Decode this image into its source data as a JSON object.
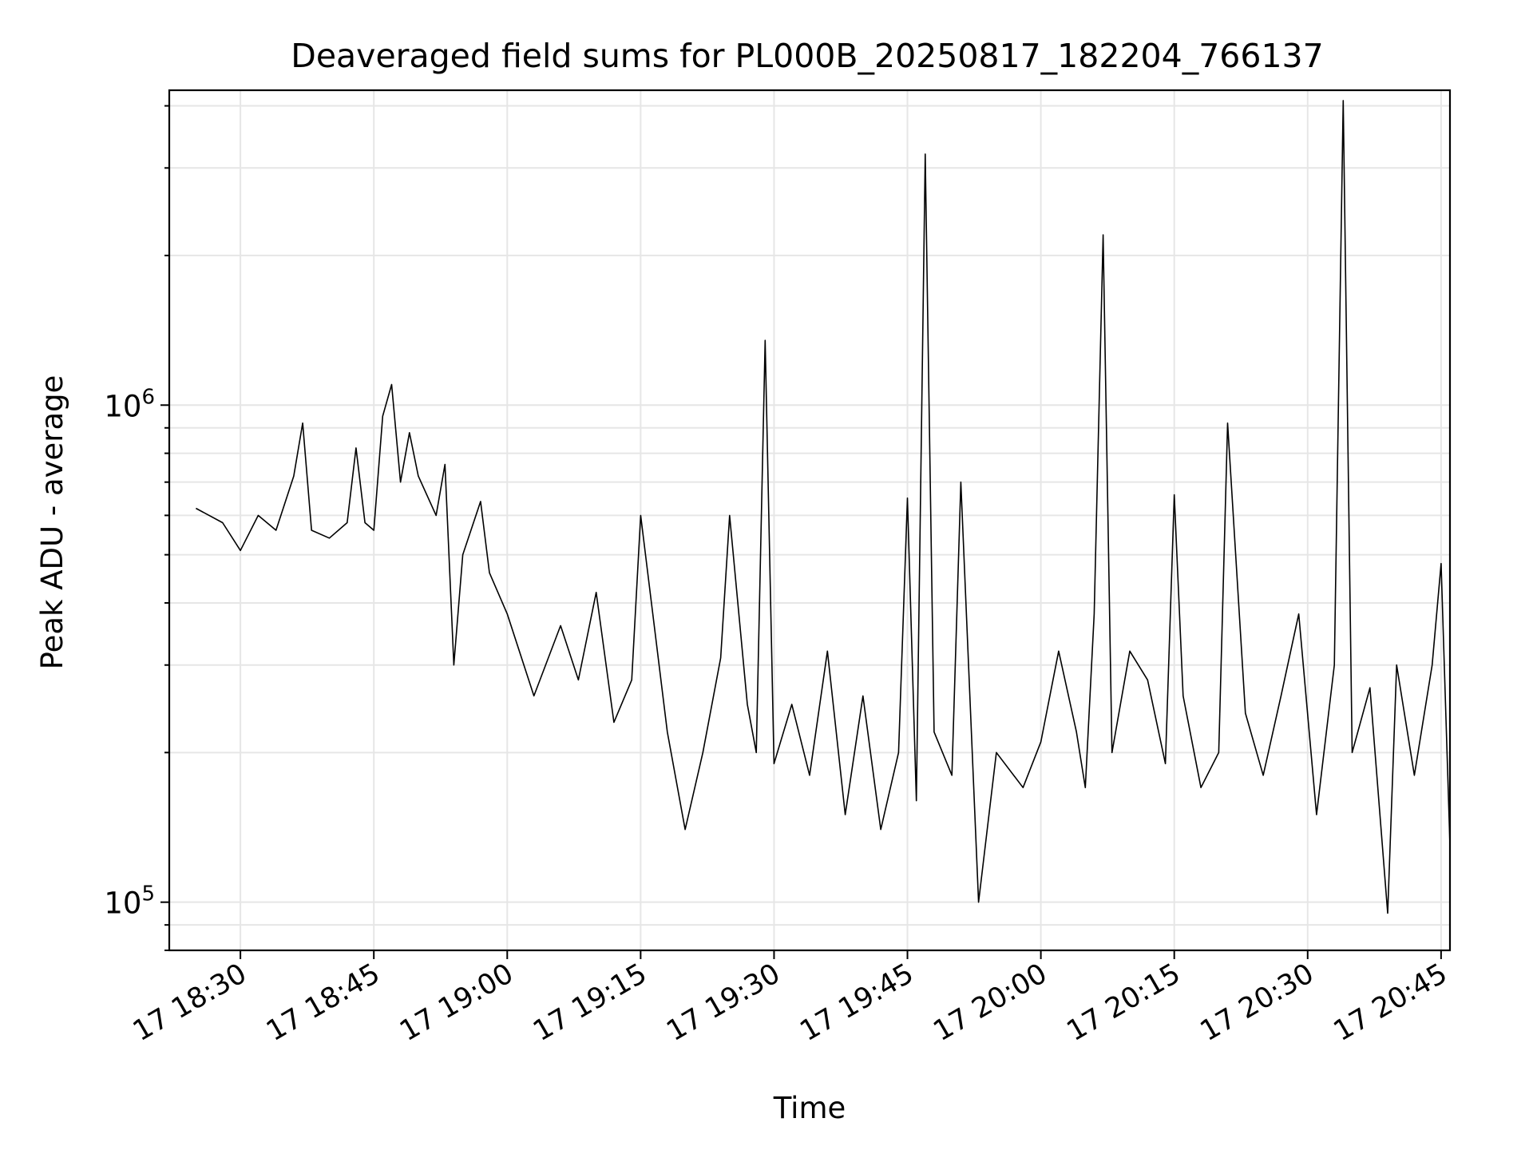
{
  "chart_data": {
    "type": "line",
    "title": "Deaveraged field sums for PL000B_20250817_182204_766137",
    "xlabel": "Time",
    "ylabel": "Peak ADU - average",
    "x_start": "2025-08-17 18:22",
    "x_end": "2025-08-17 20:46",
    "xlim": [
      "2025-08-17 18:22",
      "2025-08-17 20:46"
    ],
    "ylim": [
      80000,
      4300000
    ],
    "yscale": "log",
    "grid": true,
    "line_color": "#000000",
    "grid_color": "#e6e6e6",
    "x_ticks": [
      {
        "label": "17 18:30",
        "time": "18:30"
      },
      {
        "label": "17 18:45",
        "time": "18:45"
      },
      {
        "label": "17 19:00",
        "time": "19:00"
      },
      {
        "label": "17 19:15",
        "time": "19:15"
      },
      {
        "label": "17 19:30",
        "time": "19:30"
      },
      {
        "label": "17 19:45",
        "time": "19:45"
      },
      {
        "label": "17 20:00",
        "time": "20:00"
      },
      {
        "label": "17 20:15",
        "time": "20:15"
      },
      {
        "label": "17 20:30",
        "time": "20:30"
      },
      {
        "label": "17 20:45",
        "time": "20:45"
      }
    ],
    "y_ticks": [
      {
        "base": "10",
        "exp": "5",
        "value": 100000
      },
      {
        "base": "10",
        "exp": "6",
        "value": 1000000
      }
    ],
    "series": [
      {
        "points": [
          [
            "18:25",
            620000
          ],
          [
            "18:28",
            580000
          ],
          [
            "18:30",
            510000
          ],
          [
            "18:32",
            600000
          ],
          [
            "18:34",
            560000
          ],
          [
            "18:36",
            720000
          ],
          [
            "18:37",
            920000
          ],
          [
            "18:38",
            560000
          ],
          [
            "18:40",
            540000
          ],
          [
            "18:42",
            580000
          ],
          [
            "18:43",
            820000
          ],
          [
            "18:44",
            580000
          ],
          [
            "18:45",
            560000
          ],
          [
            "18:46",
            950000
          ],
          [
            "18:47",
            1100000
          ],
          [
            "18:48",
            700000
          ],
          [
            "18:49",
            880000
          ],
          [
            "18:50",
            720000
          ],
          [
            "18:52",
            600000
          ],
          [
            "18:53",
            760000
          ],
          [
            "18:54",
            300000
          ],
          [
            "18:55",
            500000
          ],
          [
            "18:57",
            640000
          ],
          [
            "18:58",
            460000
          ],
          [
            "19:00",
            380000
          ],
          [
            "19:03",
            260000
          ],
          [
            "19:06",
            360000
          ],
          [
            "19:08",
            280000
          ],
          [
            "19:10",
            420000
          ],
          [
            "19:12",
            230000
          ],
          [
            "19:14",
            280000
          ],
          [
            "19:15",
            600000
          ],
          [
            "19:18",
            220000
          ],
          [
            "19:20",
            140000
          ],
          [
            "19:22",
            200000
          ],
          [
            "19:24",
            310000
          ],
          [
            "19:25",
            600000
          ],
          [
            "19:27",
            250000
          ],
          [
            "19:28",
            200000
          ],
          [
            "19:29",
            1350000
          ],
          [
            "19:30",
            190000
          ],
          [
            "19:32",
            250000
          ],
          [
            "19:34",
            180000
          ],
          [
            "19:36",
            320000
          ],
          [
            "19:38",
            150000
          ],
          [
            "19:40",
            260000
          ],
          [
            "19:42",
            140000
          ],
          [
            "19:44",
            200000
          ],
          [
            "19:45",
            650000
          ],
          [
            "19:46",
            160000
          ],
          [
            "19:47",
            3200000
          ],
          [
            "19:48",
            220000
          ],
          [
            "19:50",
            180000
          ],
          [
            "19:51",
            700000
          ],
          [
            "19:53",
            100000
          ],
          [
            "19:55",
            200000
          ],
          [
            "19:58",
            170000
          ],
          [
            "20:00",
            210000
          ],
          [
            "20:02",
            320000
          ],
          [
            "20:04",
            220000
          ],
          [
            "20:05",
            170000
          ],
          [
            "20:06",
            380000
          ],
          [
            "20:07",
            2200000
          ],
          [
            "20:08",
            200000
          ],
          [
            "20:10",
            320000
          ],
          [
            "20:12",
            280000
          ],
          [
            "20:14",
            190000
          ],
          [
            "20:15",
            660000
          ],
          [
            "20:16",
            260000
          ],
          [
            "20:18",
            170000
          ],
          [
            "20:20",
            200000
          ],
          [
            "20:21",
            920000
          ],
          [
            "20:23",
            240000
          ],
          [
            "20:25",
            180000
          ],
          [
            "20:27",
            260000
          ],
          [
            "20:29",
            380000
          ],
          [
            "20:31",
            150000
          ],
          [
            "20:33",
            300000
          ],
          [
            "20:34",
            4100000
          ],
          [
            "20:35",
            200000
          ],
          [
            "20:37",
            270000
          ],
          [
            "20:39",
            95000
          ],
          [
            "20:40",
            300000
          ],
          [
            "20:42",
            180000
          ],
          [
            "20:44",
            300000
          ],
          [
            "20:45",
            480000
          ],
          [
            "20:46",
            130000
          ]
        ]
      }
    ]
  }
}
